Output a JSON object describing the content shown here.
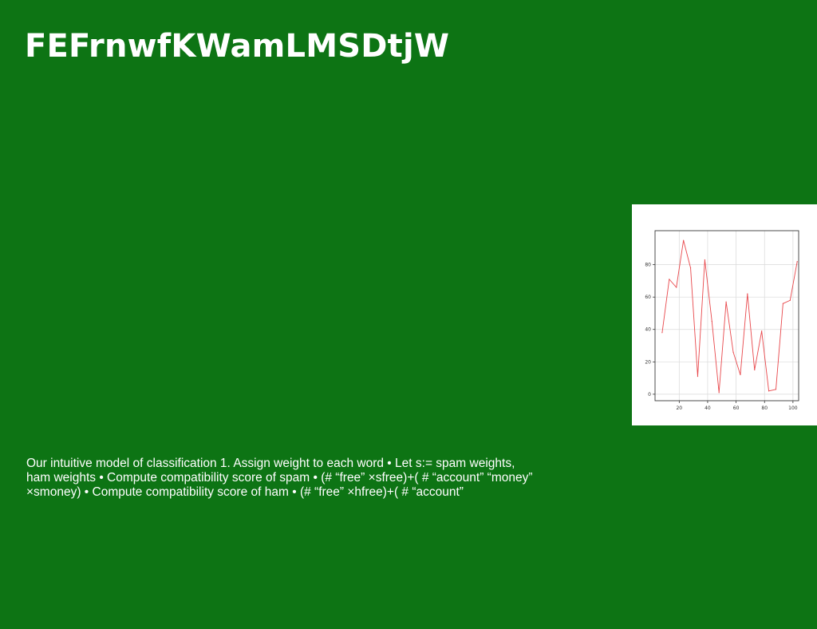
{
  "slide": {
    "title": "FEFrnwfKWamLMSDtjW",
    "body": "Our intuitive model of classification 1. Assign weight to each word • Let s:= spam weights, ham weights • Compute compatibility score of spam • (# “free” ×sfree)+( # “account” “money” ×smoney) • Compute compatibility score of ham • (# “free” ×hfree)+( # “account”"
  },
  "colors": {
    "background": "#0d7414",
    "text": "#ffffff",
    "line": "#e8474b"
  },
  "chart_data": {
    "type": "line",
    "x": [
      8,
      13,
      18,
      23,
      28,
      33,
      38,
      43,
      48,
      53,
      58,
      63,
      68,
      73,
      78,
      83,
      88,
      93,
      98,
      103
    ],
    "series": [
      {
        "values": [
          38,
          71,
          66,
          95,
          78,
          11,
          83,
          45,
          1,
          57,
          26,
          12,
          62,
          15,
          39,
          2,
          3,
          56,
          58,
          82
        ]
      }
    ],
    "xticks": [
      "20",
      "40",
      "60",
      "80",
      "100"
    ],
    "yticks": [
      "0",
      "20",
      "40",
      "60",
      "80"
    ],
    "xlim": [
      3,
      104
    ],
    "ylim": [
      -4,
      101
    ],
    "grid": true
  }
}
